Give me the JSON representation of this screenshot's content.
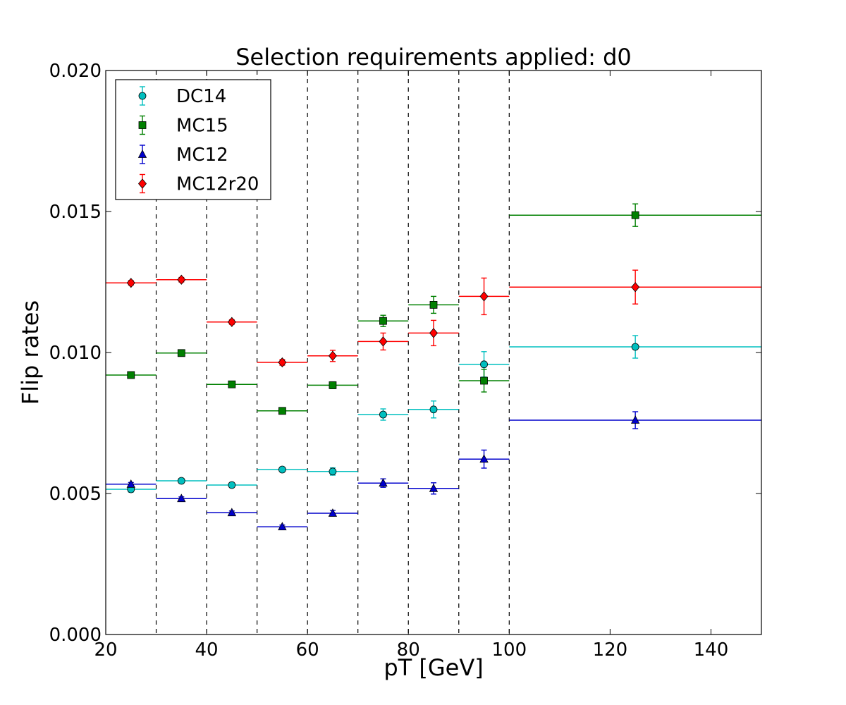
{
  "chart_data": {
    "type": "scatter",
    "title": "Selection requirements applied: d0",
    "xlabel": "pT [GeV]",
    "ylabel": "Flip rates",
    "xlim": [
      20,
      150
    ],
    "ylim": [
      0.0,
      0.02
    ],
    "xticks": [
      20,
      40,
      60,
      80,
      100,
      120,
      140
    ],
    "xtick_labels": [
      "20",
      "40",
      "60",
      "80",
      "100",
      "120",
      "140"
    ],
    "yticks": [
      0.0,
      0.005,
      0.01,
      0.015,
      0.02
    ],
    "ytick_labels": [
      "0.000",
      "0.005",
      "0.010",
      "0.015",
      "0.020"
    ],
    "bin_edges": [
      20,
      30,
      40,
      50,
      60,
      70,
      80,
      90,
      100,
      150
    ],
    "bin_centers": [
      25,
      35,
      45,
      55,
      65,
      75,
      85,
      95,
      125
    ],
    "vertical_dashed_lines_at": [
      30,
      40,
      50,
      60,
      70,
      80,
      90,
      100
    ],
    "grid": false,
    "legend_position": "top-left",
    "series": [
      {
        "name": "DC14",
        "marker": "circle",
        "color": "#00bfbf",
        "values": [
          0.00515,
          0.00545,
          0.0053,
          0.00585,
          0.00578,
          0.0078,
          0.00798,
          0.00958,
          0.0102
        ],
        "errors": [
          0.0001,
          8e-05,
          7e-05,
          7e-05,
          0.00013,
          0.0002,
          0.0003,
          0.00045,
          0.0004
        ]
      },
      {
        "name": "MC15",
        "marker": "square",
        "color": "#008000",
        "values": [
          0.0092,
          0.00998,
          0.00887,
          0.00793,
          0.00884,
          0.01112,
          0.01169,
          0.009,
          0.01487
        ],
        "errors": [
          8e-05,
          8e-05,
          7e-05,
          8e-05,
          0.00012,
          0.0002,
          0.0003,
          0.0004,
          0.0004
        ]
      },
      {
        "name": "MC12",
        "marker": "triangle",
        "color": "#0000cc",
        "values": [
          0.00533,
          0.00482,
          0.00432,
          0.00382,
          0.0043,
          0.00537,
          0.00518,
          0.00622,
          0.0076
        ],
        "errors": [
          6e-05,
          6e-05,
          6e-05,
          6e-05,
          0.0001,
          0.00015,
          0.0002,
          0.00032,
          0.0003
        ]
      },
      {
        "name": "MC12r20",
        "marker": "diamond",
        "color": "#ff0000",
        "values": [
          0.01247,
          0.01258,
          0.01108,
          0.00965,
          0.00988,
          0.01039,
          0.01069,
          0.01199,
          0.01232
        ],
        "errors": [
          8e-05,
          8e-05,
          8e-05,
          0.0001,
          0.0002,
          0.0003,
          0.00045,
          0.00065,
          0.0006
        ]
      }
    ]
  }
}
